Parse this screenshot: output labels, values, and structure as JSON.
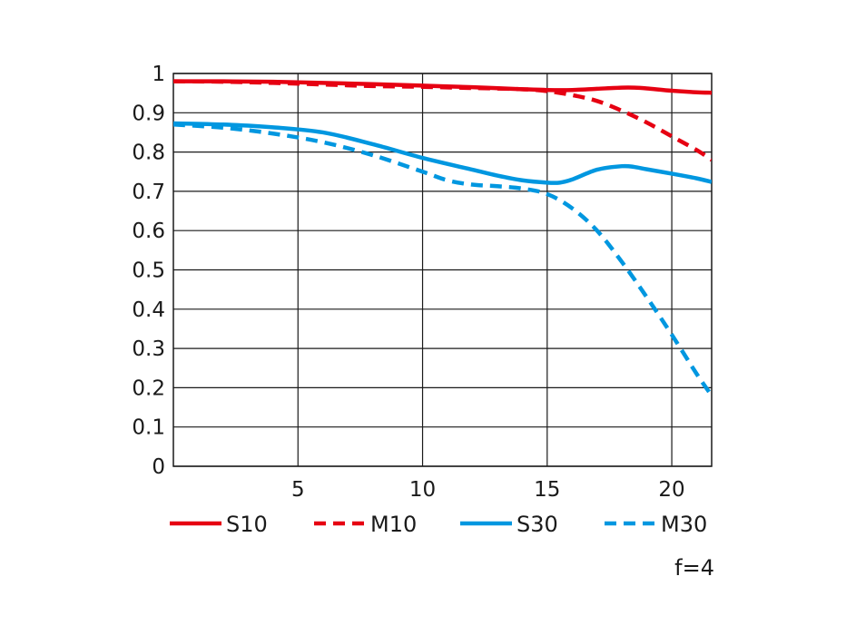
{
  "chart_data": {
    "type": "line",
    "title": "",
    "xlabel": "",
    "ylabel": "",
    "xlim": [
      0,
      21.6
    ],
    "ylim": [
      0,
      1
    ],
    "x_ticks": [
      "5",
      "10",
      "15",
      "20"
    ],
    "y_ticks": [
      "0",
      "0.1",
      "0.2",
      "0.3",
      "0.4",
      "0.5",
      "0.6",
      "0.7",
      "0.8",
      "0.9",
      "1"
    ],
    "grid": true,
    "legend_position": "bottom",
    "note": "f=4",
    "series": [
      {
        "name": "S10",
        "color": "#e60012",
        "dash": "solid",
        "x": [
          0,
          2,
          4,
          6,
          8,
          10,
          12,
          14,
          15,
          16,
          17,
          18,
          18.5,
          19,
          20,
          21,
          21.6
        ],
        "y": [
          0.98,
          0.98,
          0.979,
          0.976,
          0.973,
          0.969,
          0.965,
          0.96,
          0.958,
          0.958,
          0.961,
          0.964,
          0.964,
          0.962,
          0.956,
          0.952,
          0.951
        ]
      },
      {
        "name": "M10",
        "color": "#e60012",
        "dash": "dashed",
        "x": [
          0,
          2,
          4,
          6,
          8,
          10,
          12,
          14,
          15,
          16,
          17,
          18,
          19,
          20,
          21,
          21.6
        ],
        "y": [
          0.98,
          0.979,
          0.976,
          0.972,
          0.968,
          0.966,
          0.963,
          0.96,
          0.955,
          0.945,
          0.93,
          0.905,
          0.875,
          0.84,
          0.805,
          0.78
        ]
      },
      {
        "name": "S30",
        "color": "#0097e0",
        "dash": "solid",
        "x": [
          0,
          2,
          4,
          6,
          8,
          10,
          12,
          13,
          14,
          15,
          15.5,
          16,
          17,
          18,
          18.5,
          19,
          20,
          21,
          21.6
        ],
        "y": [
          0.873,
          0.87,
          0.863,
          0.85,
          0.82,
          0.785,
          0.755,
          0.74,
          0.728,
          0.722,
          0.722,
          0.73,
          0.755,
          0.764,
          0.762,
          0.756,
          0.745,
          0.733,
          0.724
        ]
      },
      {
        "name": "M30",
        "color": "#0097e0",
        "dash": "dashed",
        "x": [
          0,
          2,
          4,
          6,
          8,
          10,
          11,
          12,
          13,
          14,
          15,
          16,
          17,
          18,
          19,
          20,
          21,
          21.6
        ],
        "y": [
          0.87,
          0.862,
          0.847,
          0.825,
          0.792,
          0.75,
          0.728,
          0.717,
          0.713,
          0.707,
          0.693,
          0.657,
          0.6,
          0.52,
          0.43,
          0.335,
          0.235,
          0.18
        ]
      }
    ]
  }
}
